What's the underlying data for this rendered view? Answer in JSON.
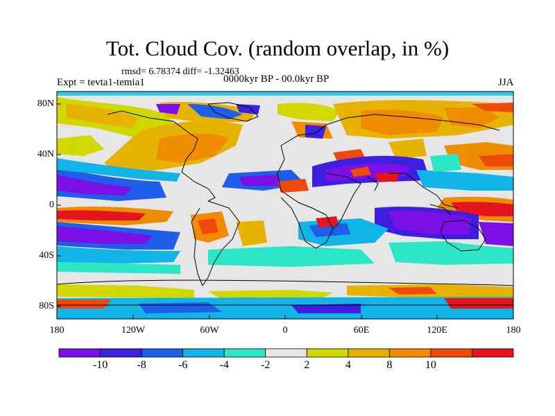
{
  "header": {
    "title": "Tot. Cloud Cov. (random overlap, in %)",
    "stats": "rmsd= 6.78374 diff= -1.32463",
    "experiment": "Expt = tevta1-temia1",
    "period": "0000kyr BP - 00.0kyr BP",
    "season": "JJA"
  },
  "axes": {
    "x_ticks": [
      "180",
      "120W",
      "60W",
      "0",
      "60E",
      "120E",
      "180"
    ],
    "y_ticks": [
      "80N",
      "40N",
      "0",
      "40S",
      "80S"
    ]
  },
  "colorbar": {
    "labels": [
      "-10",
      "-8",
      "-6",
      "-4",
      "-2",
      "2",
      "4",
      "8",
      "10"
    ],
    "colors": [
      "#7a10e6",
      "#3e1ee0",
      "#1e5ee8",
      "#10b4e6",
      "#2ce6c8",
      "#e6e6e6",
      "#d0d800",
      "#e6b400",
      "#f08c00",
      "#f04a0a",
      "#e6141e"
    ]
  },
  "legend_palette": {
    "land_outline": "#000000",
    "top_band": "#32c8e6"
  }
}
